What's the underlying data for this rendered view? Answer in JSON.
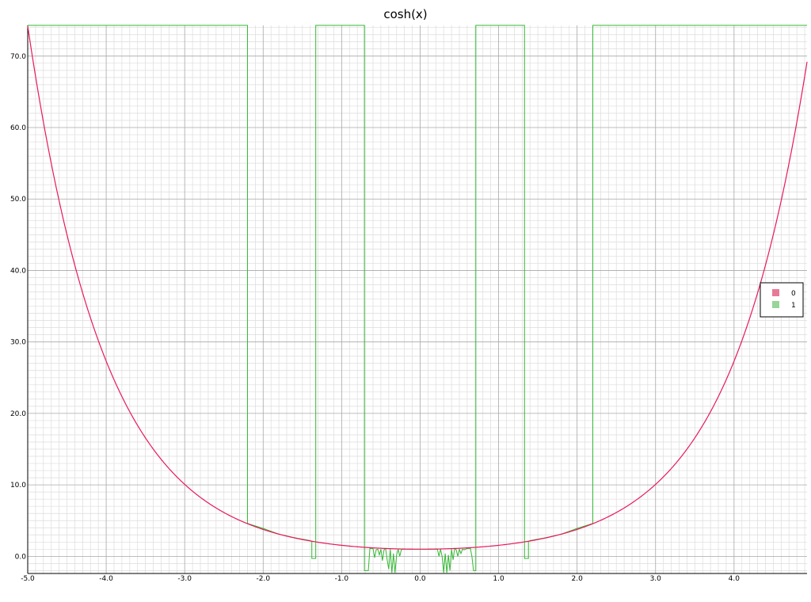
{
  "chart_data": {
    "type": "line",
    "title": "cosh(x)",
    "xlabel": "",
    "ylabel": "",
    "xlim": [
      -5.0,
      4.93
    ],
    "ylim": [
      -2.4,
      74.3
    ],
    "grid": true,
    "legend_position": "right",
    "x_ticks": [
      "-5.0",
      "-4.0",
      "-3.0",
      "-2.0",
      "-1.0",
      "0.0",
      "1.0",
      "2.0",
      "3.0",
      "4.0"
    ],
    "y_ticks": [
      "0.0",
      "10.0",
      "20.0",
      "30.0",
      "40.0",
      "50.0",
      "60.0",
      "70.0"
    ],
    "series": [
      {
        "name": "0",
        "color": "#e8195a",
        "function": "cosh",
        "x_range": [
          -5.0,
          4.93
        ]
      },
      {
        "name": "1",
        "color": "#33b833",
        "points": [
          [
            -5.0,
            74.3
          ],
          [
            -2.2,
            74.3
          ],
          [
            -2.2,
            4.6
          ],
          [
            -2.0,
            3.9
          ],
          [
            -1.8,
            3.1
          ],
          [
            -1.6,
            2.6
          ],
          [
            -1.4,
            2.2
          ],
          [
            -1.38,
            2.1
          ],
          [
            -1.38,
            -0.3
          ],
          [
            -1.33,
            -0.3
          ],
          [
            -1.33,
            74.3
          ],
          [
            -0.71,
            74.3
          ],
          [
            -0.71,
            -2.0
          ],
          [
            -0.66,
            -2.0
          ],
          [
            -0.64,
            1.1
          ],
          [
            -0.6,
            1.1
          ],
          [
            -0.58,
            -0.2
          ],
          [
            -0.56,
            0.9
          ],
          [
            -0.54,
            1.0
          ],
          [
            -0.52,
            0.2
          ],
          [
            -0.5,
            1.0
          ],
          [
            -0.48,
            -0.6
          ],
          [
            -0.46,
            0.9
          ],
          [
            -0.44,
            1.1
          ],
          [
            -0.42,
            -0.5
          ],
          [
            -0.4,
            -1.8
          ],
          [
            -0.38,
            1.0
          ],
          [
            -0.36,
            -2.3
          ],
          [
            -0.34,
            0.4
          ],
          [
            -0.32,
            -2.3
          ],
          [
            -0.3,
            0.2
          ],
          [
            -0.28,
            1.0
          ],
          [
            -0.26,
            0.0
          ],
          [
            -0.24,
            0.9
          ],
          [
            -0.22,
            1.0
          ],
          [
            0.22,
            1.0
          ],
          [
            0.24,
            0.0
          ],
          [
            0.26,
            1.0
          ],
          [
            0.28,
            0.0
          ],
          [
            0.3,
            -2.3
          ],
          [
            0.32,
            0.4
          ],
          [
            0.34,
            -2.3
          ],
          [
            0.36,
            0.2
          ],
          [
            0.38,
            -2.0
          ],
          [
            0.4,
            1.0
          ],
          [
            0.42,
            -0.5
          ],
          [
            0.44,
            1.1
          ],
          [
            0.46,
            0.9
          ],
          [
            0.48,
            0.0
          ],
          [
            0.5,
            1.0
          ],
          [
            0.52,
            0.4
          ],
          [
            0.54,
            1.0
          ],
          [
            0.56,
            0.9
          ],
          [
            0.58,
            1.0
          ],
          [
            0.6,
            1.1
          ],
          [
            0.64,
            1.1
          ],
          [
            0.66,
            0.0
          ],
          [
            0.68,
            -2.0
          ],
          [
            0.71,
            -2.0
          ],
          [
            0.71,
            74.3
          ],
          [
            1.33,
            74.3
          ],
          [
            1.33,
            -0.3
          ],
          [
            1.38,
            -0.3
          ],
          [
            1.38,
            2.1
          ],
          [
            1.4,
            2.2
          ],
          [
            1.6,
            2.6
          ],
          [
            1.8,
            3.1
          ],
          [
            2.0,
            3.9
          ],
          [
            2.2,
            4.6
          ],
          [
            2.2,
            74.3
          ],
          [
            4.93,
            74.3
          ]
        ]
      }
    ]
  }
}
